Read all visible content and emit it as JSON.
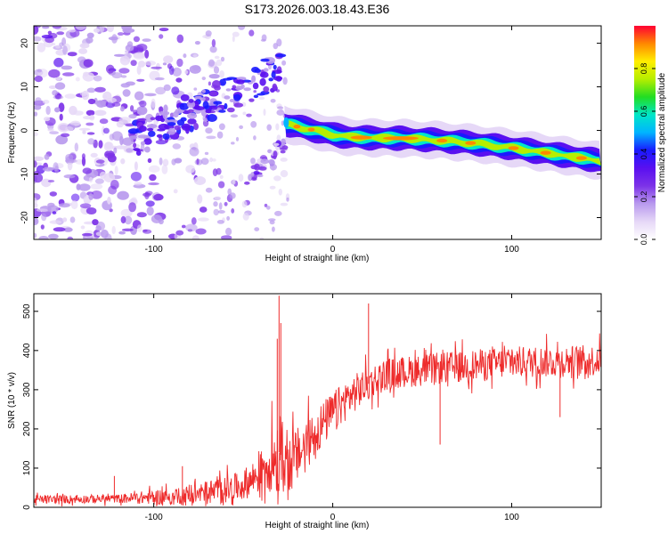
{
  "title": "S173.2026.003.18.43.E36",
  "colors": {
    "line": "#ee2b2b",
    "spectral_scale": [
      "#ffffff",
      "#e6d8f7",
      "#b99aee",
      "#7d33e8",
      "#5a10f0",
      "#1a1aff",
      "#00b4ff",
      "#00e6c8",
      "#22dd22",
      "#b6ee00",
      "#ffee00",
      "#ff8800",
      "#ff0033"
    ]
  },
  "chart_data": [
    {
      "type": "heatmap",
      "xlabel": "Height of straight line (km)",
      "ylabel": "Frequency (Hz)",
      "xlim": [
        -167,
        150
      ],
      "ylim": [
        -25,
        24
      ],
      "xticks": [
        -100,
        0,
        100
      ],
      "xtick_labels": [
        "-100",
        "0",
        "100"
      ],
      "yticks": [
        -20,
        -10,
        0,
        10,
        20
      ],
      "ytick_labels": [
        "-20",
        "-10",
        "0",
        "10",
        "20"
      ],
      "colorbar": {
        "label": "Normalized spectral amplitude",
        "range": [
          0,
          1
        ],
        "ticks": [
          0.0,
          0.2,
          0.4,
          0.6,
          0.8
        ],
        "tick_labels": [
          "0.0",
          "0.2",
          "0.4",
          "0.6",
          "0.8"
        ]
      },
      "features": {
        "scattered_noise": {
          "x_range": [
            -167,
            -55
          ],
          "f_range": [
            -25,
            24
          ],
          "amplitude": [
            0.05,
            0.3
          ]
        },
        "rising_track": {
          "x_start": -112,
          "x_end": -28,
          "f_start": -2,
          "f_end": 14,
          "amplitude": 0.35
        },
        "falling_track": {
          "x_start": -48,
          "x_end": -25,
          "f_start": -12,
          "f_end": -2,
          "amplitude": 0.2
        },
        "main_track": {
          "x": [
            -27,
            -10,
            0,
            10,
            20,
            40,
            60,
            80,
            100,
            120,
            150
          ],
          "f": [
            1.5,
            0,
            -1,
            -1.5,
            -1.7,
            -1.8,
            -2.3,
            -3,
            -4,
            -5.2,
            -7
          ],
          "peak_amplitude": 0.95
        }
      }
    },
    {
      "type": "line",
      "xlabel": "Height of straight line (km)",
      "ylabel": "SNR (10 * v/v)",
      "xlim": [
        -167,
        150
      ],
      "ylim": [
        0,
        545
      ],
      "xticks": [
        -100,
        0,
        100
      ],
      "xtick_labels": [
        "-100",
        "0",
        "100"
      ],
      "yticks": [
        0,
        100,
        200,
        300,
        400,
        500
      ],
      "ytick_labels": [
        "0",
        "100",
        "200",
        "300",
        "400",
        "500"
      ],
      "series": [
        {
          "name": "SNR",
          "baseline_x": [
            -167,
            -120,
            -80,
            -60,
            -50,
            -40,
            -35,
            -30,
            -25,
            -20,
            -10,
            0,
            10,
            20,
            30,
            60,
            100,
            150
          ],
          "baseline_y": [
            20,
            22,
            30,
            45,
            55,
            90,
            120,
            140,
            110,
            130,
            190,
            240,
            285,
            315,
            340,
            355,
            370,
            375
          ],
          "noise_amplitude": [
            12,
            12,
            30,
            40,
            40,
            60,
            90,
            120,
            90,
            80,
            70,
            60,
            55,
            50,
            45,
            45,
            45,
            45
          ],
          "spikes": [
            {
              "x": -30,
              "y": 540
            },
            {
              "x": -29,
              "y": 470
            },
            {
              "x": -31,
              "y": 430
            },
            {
              "x": -122,
              "y": 80
            },
            {
              "x": -84,
              "y": 105
            },
            {
              "x": 20,
              "y": 520
            },
            {
              "x": 60,
              "y": 160
            },
            {
              "x": 127,
              "y": 230
            }
          ]
        }
      ]
    }
  ]
}
